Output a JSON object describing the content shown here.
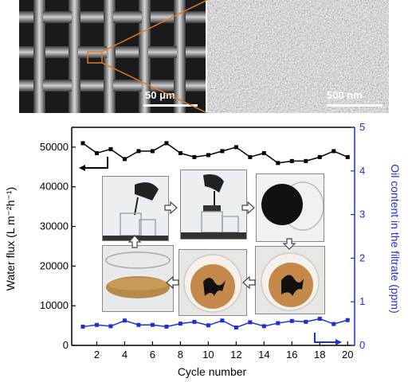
{
  "images": {
    "sem_left_scale": "50 μm",
    "sem_right_scale": "500 nm",
    "callout_color": "#e07b2a"
  },
  "chart_data": {
    "type": "line",
    "x": [
      1,
      2,
      3,
      4,
      5,
      6,
      7,
      8,
      9,
      10,
      11,
      12,
      13,
      14,
      15,
      16,
      17,
      18,
      19,
      20
    ],
    "xlabel": "Cycle number",
    "xlim": [
      0.2,
      20.5
    ],
    "xticks": [
      2,
      4,
      6,
      8,
      10,
      12,
      14,
      16,
      18,
      20
    ],
    "series": [
      {
        "axis": "left",
        "color": "#000000",
        "marker": "square",
        "values": [
          51000,
          48500,
          49500,
          47000,
          49000,
          49000,
          51000,
          48500,
          47500,
          48000,
          49000,
          50000,
          47500,
          48500,
          46000,
          46500,
          46500,
          47500,
          49000,
          47500
        ]
      },
      {
        "axis": "right",
        "color": "#1f2fd6",
        "marker": "square",
        "values": [
          0.43,
          0.47,
          0.44,
          0.57,
          0.47,
          0.47,
          0.43,
          0.5,
          0.54,
          0.46,
          0.57,
          0.41,
          0.53,
          0.44,
          0.51,
          0.56,
          0.54,
          0.61,
          0.49,
          0.58
        ]
      }
    ],
    "ylabel_left": "Water flux (L m⁻²h⁻¹)",
    "ylim_left": [
      0,
      55000
    ],
    "yticks_left": [
      0,
      10000,
      20000,
      30000,
      40000,
      50000
    ],
    "ylabel_right": "Oil content in the filtrate (ppm)",
    "ylim_right": [
      0,
      5
    ],
    "yticks_right": [
      0,
      1,
      2,
      3,
      4,
      5
    ]
  }
}
